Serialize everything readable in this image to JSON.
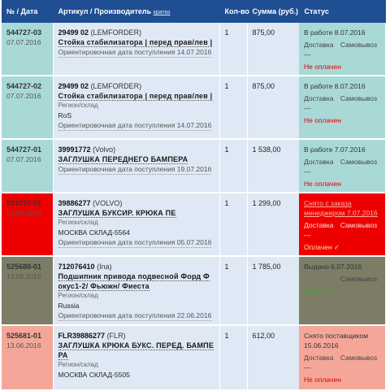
{
  "colors": {
    "header_bg": "#1f4e93",
    "cell_bg": "#dfe9f5",
    "teal": "#a9d9d7",
    "red": "#ee0000",
    "olive": "#7d7d67",
    "salmon": "#f4a799"
  },
  "header": {
    "col_order": "№ / Дата",
    "col_article": "Артикул / Производитель",
    "col_article_link": "кратко",
    "col_qty": "Кол-во",
    "col_sum": "Сумма (руб.)",
    "col_status": "Статус"
  },
  "rows": [
    {
      "color_key": "teal",
      "order_no": "544727-03",
      "order_date": "07.07.2016",
      "article": "29499 02",
      "maker": "(LEMFORDER)",
      "name": "Стойка стабилизатора | перед прав/лев |",
      "region_label": "",
      "region": "",
      "eta": "Ориентировочная дата поступления 14.07.2016",
      "qty": "1",
      "sum": "875,00",
      "status": [
        "В работе 8.07.2016"
      ],
      "delivery": "Доставка —",
      "delivery_type": "Самовывоз",
      "payment": "Не оплачен",
      "payment_state": "unpaid"
    },
    {
      "color_key": "teal",
      "order_no": "544727-02",
      "order_date": "07.07.2016",
      "article": "29499 02",
      "maker": "(LEMFORDER)",
      "name": "Стойка стабилизатора | перед прав/лев |",
      "region_label": "Регион/склад",
      "region": "RoS",
      "eta": "Ориентировочная дата поступления 14.07.2016",
      "qty": "1",
      "sum": "875,00",
      "status": [
        "В работе 8.07.2016"
      ],
      "delivery": "Доставка —",
      "delivery_type": "Самовывоз",
      "payment": "Не оплачен",
      "payment_state": "unpaid"
    },
    {
      "color_key": "teal",
      "order_no": "544727-01",
      "order_date": "07.07.2016",
      "article": "39991772",
      "maker": "(Volvo)",
      "name": "ЗАГЛУШКА ПЕРЕДНЕГО БАМПЕРА",
      "region_label": "",
      "region": "",
      "eta": "Ориентировочная дата поступления 19.07.2016",
      "qty": "1",
      "sum": "1 538,00",
      "status": [
        "В работе 7.07.2016"
      ],
      "delivery": "Доставка —",
      "delivery_type": "Самовывоз",
      "payment": "Не оплачен",
      "payment_state": "unpaid"
    },
    {
      "color_key": "red",
      "order_no": "501072-01",
      "order_date": "21.06.2016",
      "article": "39886277",
      "maker": "(VOLVO)",
      "name": "ЗАГЛУШКА БУКСИР. КРЮКА ПЕ",
      "region_label": "Регион/склад",
      "region": "МОСКВА СКЛАД-5564",
      "eta": "Ориентировочная дата поступления 05.07.2016",
      "qty": "1",
      "sum": "1 299,00",
      "status": [
        "Снято с заказа",
        "менеджером 7.07.2016"
      ],
      "delivery": "Доставка —",
      "delivery_type": "Самовывоз",
      "payment": "Оплачен ✓",
      "payment_state": "paid"
    },
    {
      "color_key": "olive",
      "order_no": "525688-01",
      "order_date": "13.06.2016",
      "article": "712076410",
      "maker": "(Ina)",
      "name": "Подшипник привода подвесной Форд Ф окус1-2/ Фьюжн/ Фиеста",
      "region_label": "Регион/склад",
      "region": "Russia",
      "eta": "Ориентировочная дата поступления 22.06.2016",
      "qty": "1",
      "sum": "1 785,00",
      "status": [
        "Выдано 6.07.2016"
      ],
      "delivery": "",
      "delivery_type": "Самовывоз",
      "payment": "Оплачен ✓",
      "payment_state": "paid"
    },
    {
      "color_key": "salmon",
      "order_no": "525681-01",
      "order_date": "13.06.2016",
      "article": "FLR39886277",
      "maker": "(FLR)",
      "name": "ЗАГЛУШКА КРЮКА БУКС. ПЕРЕД. БАМПЕ РА",
      "region_label": "Регион/склад",
      "region": "МОСКВА СКЛАД-5505",
      "eta": "",
      "qty": "1",
      "sum": "612,00",
      "status": [
        "Снято поставщиком",
        "15.06.2016"
      ],
      "delivery": "Доставка —",
      "delivery_type": "Самовывоз",
      "payment": "Не оплачен",
      "payment_state": "unpaid"
    }
  ]
}
